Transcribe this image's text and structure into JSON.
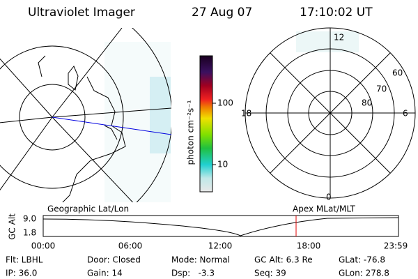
{
  "header": {
    "title": "Ultraviolet Imager",
    "date": "27 Aug 07",
    "time": "17:10:02 UT"
  },
  "colorbar": {
    "label": "photon cm⁻²s⁻¹",
    "ticks": [
      "100",
      "10"
    ]
  },
  "polar_plot": {
    "mlt_labels": [
      "12",
      "18",
      "6",
      "0"
    ],
    "lat_labels": [
      "60",
      "70",
      "80"
    ]
  },
  "timeline": {
    "left_title": "Geographic Lat/Lon",
    "right_title": "Apex MLat/MLT",
    "y_axis_label": "GC Alt",
    "yticks": [
      "9.0",
      "1.8"
    ],
    "xticks": [
      "00:00",
      "06:00",
      "12:00",
      "18:00",
      "23:59"
    ]
  },
  "status": {
    "rows": [
      [
        "Flt: LBHL",
        "Door: Closed",
        "Mode: Normal",
        "GC Alt: 6.3 Re",
        "GLat: -76.8"
      ],
      [
        "IP: 36.0",
        "Gain: 14",
        "Dsp:   -3.3",
        "Seq: 39",
        "GLon: 278.8"
      ]
    ]
  }
}
